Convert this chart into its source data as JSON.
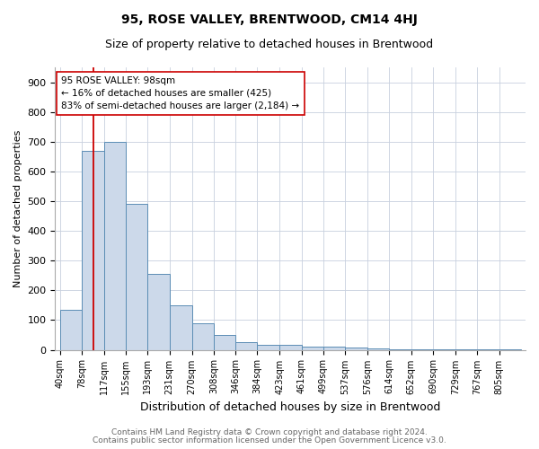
{
  "title": "95, ROSE VALLEY, BRENTWOOD, CM14 4HJ",
  "subtitle": "Size of property relative to detached houses in Brentwood",
  "xlabel": "Distribution of detached houses by size in Brentwood",
  "ylabel": "Number of detached properties",
  "footnote1": "Contains HM Land Registry data © Crown copyright and database right 2024.",
  "footnote2": "Contains public sector information licensed under the Open Government Licence v3.0.",
  "categories": [
    "40sqm",
    "78sqm",
    "117sqm",
    "155sqm",
    "193sqm",
    "231sqm",
    "270sqm",
    "308sqm",
    "346sqm",
    "384sqm",
    "423sqm",
    "461sqm",
    "499sqm",
    "537sqm",
    "576sqm",
    "614sqm",
    "652sqm",
    "690sqm",
    "729sqm",
    "767sqm",
    "805sqm"
  ],
  "values": [
    135,
    670,
    700,
    490,
    255,
    150,
    90,
    50,
    25,
    18,
    18,
    10,
    10,
    8,
    5,
    3,
    3,
    3,
    2,
    1,
    2
  ],
  "bar_color": "#ccd9ea",
  "bar_edge_color": "#5b8db5",
  "property_label": "95 ROSE VALLEY: 98sqm",
  "annotation_line1": "← 16% of detached houses are smaller (425)",
  "annotation_line2": "83% of semi-detached houses are larger (2,184) →",
  "vline_color": "#cc0000",
  "vline_position": 98,
  "annotation_box_color": "#ffffff",
  "annotation_box_edge": "#cc0000",
  "ylim": [
    0,
    950
  ],
  "yticks": [
    0,
    100,
    200,
    300,
    400,
    500,
    600,
    700,
    800,
    900
  ],
  "grid_color": "#c8d0de",
  "title_fontsize": 10,
  "subtitle_fontsize": 9,
  "footnote_fontsize": 6.5,
  "axis_label_fontsize": 9,
  "ylabel_fontsize": 8,
  "tick_fontsize": 8,
  "xtick_fontsize": 7
}
